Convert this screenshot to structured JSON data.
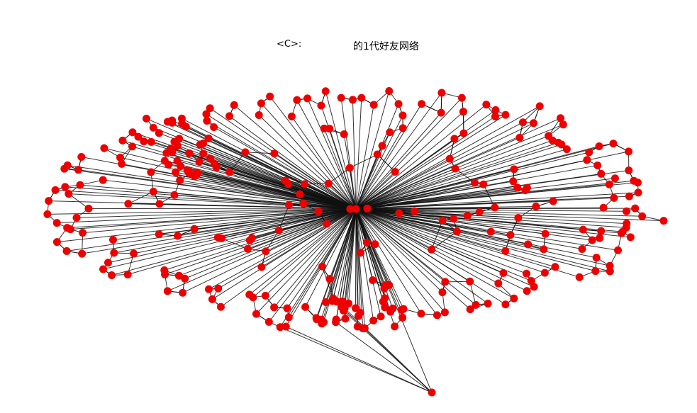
{
  "title": {
    "user": "<C>:",
    "caption": "的1代好友网络"
  },
  "colors": {
    "node": "#ee0000",
    "edge": "#111111",
    "background": "#ffffff"
  },
  "graph": {
    "layout": "spring",
    "hub_count": 1,
    "leaf_count": 300
  }
}
